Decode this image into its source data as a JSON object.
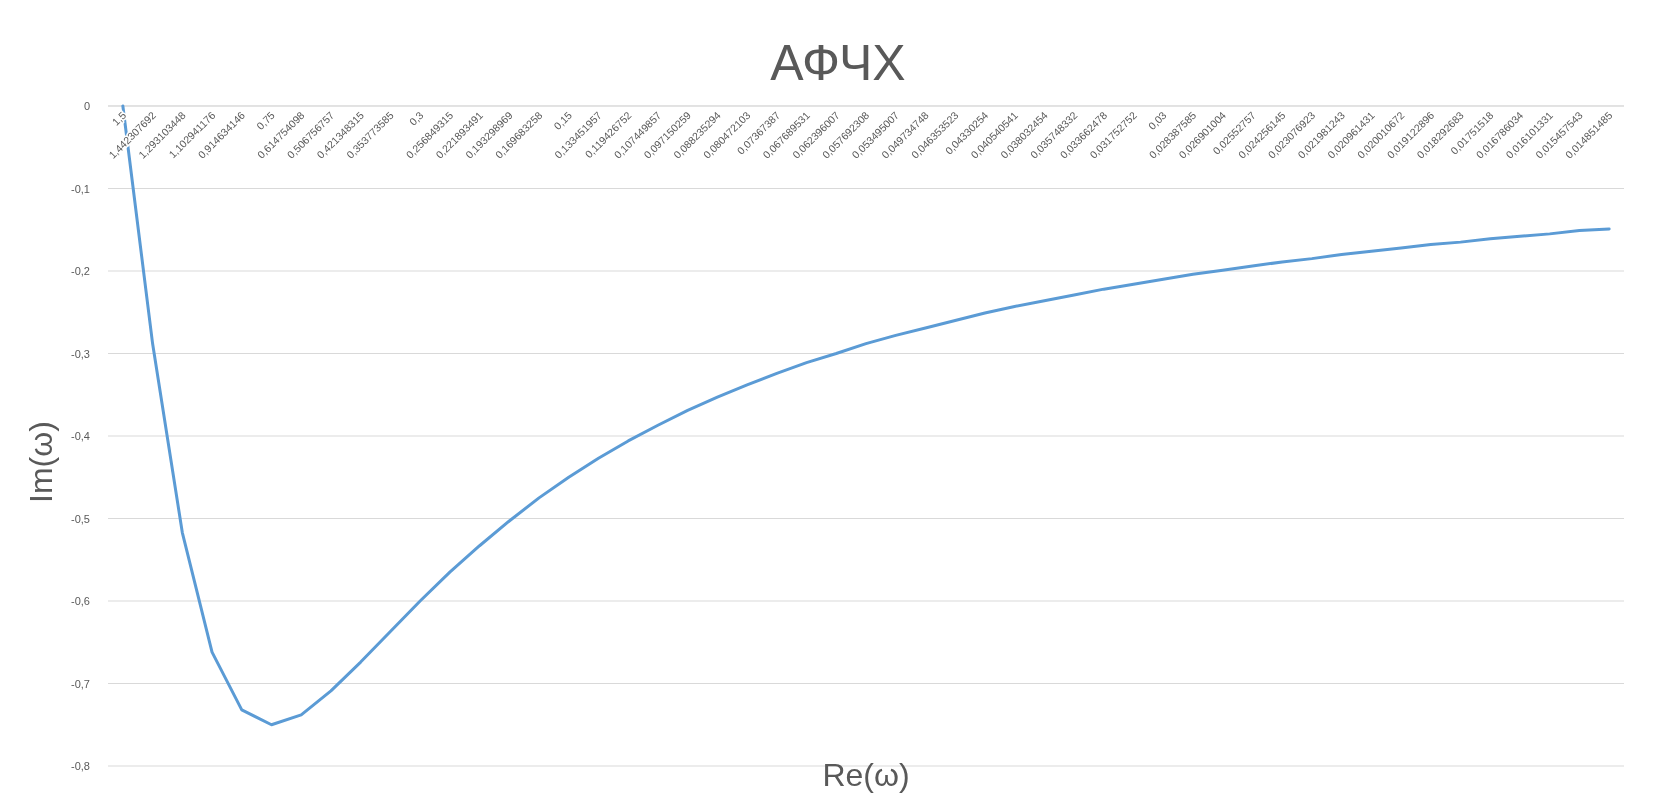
{
  "chart_data": {
    "type": "line",
    "title": "АФЧХ",
    "xlabel": "Re(ω)",
    "ylabel": "Im(ω)",
    "categories": [
      "1,5",
      "1,442307692",
      "1,293103448",
      "1,102941176",
      "0,914634146",
      "0,75",
      "0,614754098",
      "0,506756757",
      "0,421348315",
      "0,353773585",
      "0,3",
      "0,256849315",
      "0,221893491",
      "0,193298969",
      "0,169683258",
      "0,15",
      "0,133451957",
      "0,119426752",
      "0,107449857",
      "0,097150259",
      "0,088235294",
      "0,080472103",
      "0,07367387",
      "0,067689531",
      "0,062396007",
      "0,057692308",
      "0,053495007",
      "0,049734748",
      "0,046353523",
      "0,04330254",
      "0,040540541",
      "0,038032454",
      "0,035748332",
      "0,033662478",
      "0,031752752",
      "0,03",
      "0,028387585",
      "0,026901004",
      "0,02552757",
      "0,024256145",
      "0,023076923",
      "0,021981243",
      "0,020961431",
      "0,020010672",
      "0,019122896",
      "0,018292683",
      "0,01751518",
      "0,016786034",
      "0,016101331",
      "0,015457543",
      "0,014851485"
    ],
    "series": [
      {
        "color": "#5b9bd5",
        "values": [
          0,
          -0.288,
          -0.517,
          -0.662,
          -0.732,
          -0.75,
          -0.738,
          -0.709,
          -0.674,
          -0.637,
          -0.6,
          -0.565,
          -0.533,
          -0.503,
          -0.475,
          -0.45,
          -0.427,
          -0.406,
          -0.387,
          -0.369,
          -0.353,
          -0.338,
          -0.324,
          -0.311,
          -0.3,
          -0.288,
          -0.278,
          -0.269,
          -0.26,
          -0.251,
          -0.243,
          -0.236,
          -0.229,
          -0.222,
          -0.216,
          -0.21,
          -0.204,
          -0.199,
          -0.194,
          -0.189,
          -0.185,
          -0.18,
          -0.176,
          -0.172,
          -0.168,
          -0.165,
          -0.161,
          -0.158,
          -0.155,
          -0.151,
          -0.149
        ]
      }
    ],
    "ylim": [
      -0.8,
      0
    ],
    "yticks": [
      0,
      {
        "value": -0.1,
        "label": "-0,1"
      },
      {
        "value": -0.2,
        "label": "-0,2"
      },
      {
        "value": -0.3,
        "label": "-0,3"
      },
      {
        "value": -0.4,
        "label": "-0,4"
      },
      {
        "value": -0.5,
        "label": "-0,5"
      },
      {
        "value": -0.6,
        "label": "-0,6"
      },
      {
        "value": -0.7,
        "label": "-0,7"
      },
      {
        "value": -0.8,
        "label": "-0,8"
      }
    ],
    "grid": "y",
    "line_style": "solid",
    "marker": "none"
  }
}
